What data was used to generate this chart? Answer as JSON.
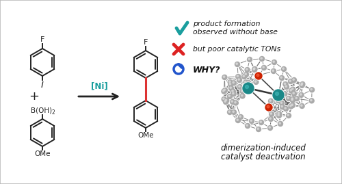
{
  "bg_color": "#ffffff",
  "border_color": "#bbbbbb",
  "teal_color": "#1a9e9e",
  "red_color": "#dd2222",
  "blue_color": "#2255cc",
  "arrow_color": "#111111",
  "bond_color": "#222222",
  "text1a": "product formation",
  "text1b": "observed without base",
  "text2": "but poor catalytic TONs",
  "text3": "WHY?",
  "text4a": "dimerization-induced",
  "text4b": "catalyst deactivation",
  "ni_label": "[Ni]",
  "label_F_top": "F",
  "label_I": "I",
  "label_B": "B(OH)",
  "label_B2": "2",
  "label_OMe1": "OMe",
  "label_OMe2": "OMe",
  "label_F_product": "F",
  "label_OMe_product": "OMe",
  "figsize": [
    5.0,
    2.69
  ],
  "dpi": 100
}
